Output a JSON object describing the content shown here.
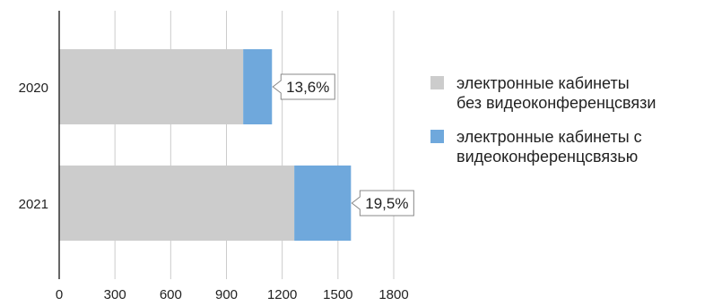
{
  "chart_data": {
    "type": "bar",
    "orientation": "horizontal",
    "stacked": true,
    "categories": [
      "2020",
      "2021"
    ],
    "series": [
      {
        "name": "электронные кабинеты\nбез видеоконференцсвязи",
        "values": [
          990,
          1265
        ],
        "color": "#cccccc"
      },
      {
        "name": "электронные кабинеты с\nвидеоконференцсвязью",
        "values": [
          155,
          305
        ],
        "color": "#6fa8dc"
      }
    ],
    "data_labels": [
      "13,6%",
      "19,5%"
    ],
    "xlim": [
      0,
      1800
    ],
    "xticks": [
      "0",
      "300",
      "600",
      "900",
      "1200",
      "1500",
      "1800"
    ],
    "grid": "vertical",
    "legend_position": "right"
  }
}
